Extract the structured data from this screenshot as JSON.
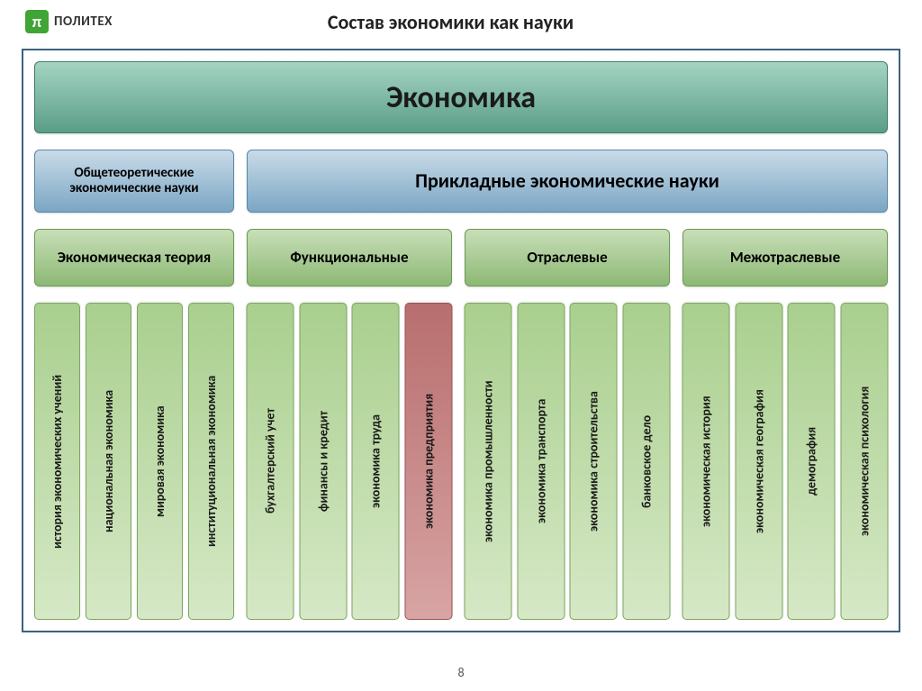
{
  "logo": {
    "symbol": "π",
    "text": "ПОЛИТЕХ",
    "bg": "#3fa535"
  },
  "title": "Состав экономики как науки",
  "page_number": "8",
  "colors": {
    "teal_grad_top": "#a4d4c2",
    "teal_grad_bot": "#5a9e88",
    "teal_border": "#3f7c66",
    "blue_grad_top": "#c9dbe8",
    "blue_grad_bot": "#7ba6c4",
    "blue_border": "#5a88a8",
    "green_grad_top": "#c8dfb8",
    "green_grad_bot": "#8db874",
    "green_border": "#6c9a55",
    "lightgreen_top": "#d6e8c6",
    "lightgreen_bot": "#a9cf8e",
    "lightgreen_border": "#7ba75f",
    "red_top": "#d8a4a4",
    "red_bot": "#b86e6e",
    "red_border": "#9c5252",
    "frame_border": "#3c6180"
  },
  "main_box": "Экономика",
  "row2": [
    {
      "label": "Общетеоретические экономические науки",
      "css": "b-left"
    },
    {
      "label": "Прикладные экономические науки",
      "css": "b-right"
    }
  ],
  "row3": [
    {
      "label": "Экономическая теория",
      "css": "c1"
    },
    {
      "label": "Функциональные",
      "css": "c2"
    },
    {
      "label": "Отраслевые",
      "css": "c3"
    },
    {
      "label": "Межотраслевые",
      "css": "c4"
    }
  ],
  "row4": [
    {
      "css": "g1",
      "items": [
        {
          "label": "история экономических учений",
          "color": "green"
        },
        {
          "label": "национальная экономика",
          "color": "green"
        },
        {
          "label": "мировая экономика",
          "color": "green"
        },
        {
          "label": "институциональная экономика",
          "color": "green"
        }
      ]
    },
    {
      "css": "g2",
      "items": [
        {
          "label": "бухгалтерский учет",
          "color": "green"
        },
        {
          "label": "финансы и кредит",
          "color": "green"
        },
        {
          "label": "экономика труда",
          "color": "green"
        },
        {
          "label": "экономика предприятия",
          "color": "red"
        }
      ]
    },
    {
      "css": "g3",
      "items": [
        {
          "label": "экономика промышленности",
          "color": "green"
        },
        {
          "label": "экономика транспорта",
          "color": "green"
        },
        {
          "label": "экономика строительства",
          "color": "green"
        },
        {
          "label": "банковское дело",
          "color": "green"
        }
      ]
    },
    {
      "css": "g4",
      "items": [
        {
          "label": "экономическая история",
          "color": "green"
        },
        {
          "label": "экономическая география",
          "color": "green"
        },
        {
          "label": "демография",
          "color": "green"
        },
        {
          "label": "экономическая психология",
          "color": "green"
        }
      ]
    }
  ]
}
